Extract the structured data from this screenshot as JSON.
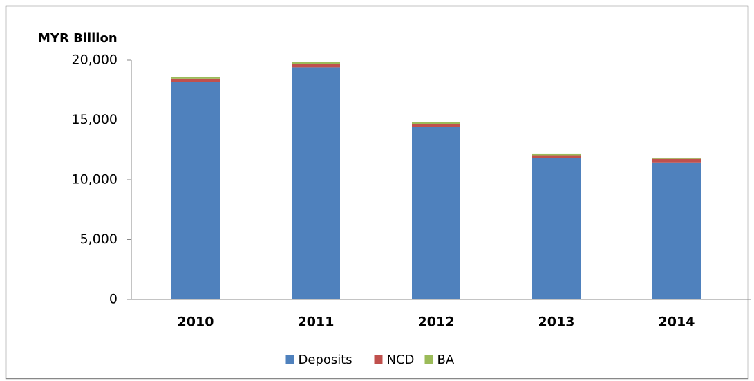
{
  "chart_data": {
    "type": "stacked_bar",
    "y_axis_label": "MYR Billion",
    "categories": [
      "2010",
      "2011",
      "2012",
      "2013",
      "2014"
    ],
    "series": [
      {
        "name": "Deposits",
        "color": "#4f81bd",
        "values": [
          18200,
          19400,
          14400,
          11800,
          11400
        ]
      },
      {
        "name": "NCD",
        "color": "#c0504d",
        "values": [
          250,
          300,
          250,
          250,
          350
        ]
      },
      {
        "name": "BA",
        "color": "#9bbb59",
        "values": [
          150,
          150,
          150,
          150,
          100
        ]
      }
    ],
    "ylim": [
      0,
      20000
    ],
    "yticks": [
      0,
      {
        "value": 5000,
        "label": "5,000"
      },
      {
        "value": 10000,
        "label": "10,000"
      },
      {
        "value": 15000,
        "label": "15,000"
      },
      {
        "value": 20000,
        "label": "20,000"
      }
    ],
    "legend": "bottom"
  }
}
